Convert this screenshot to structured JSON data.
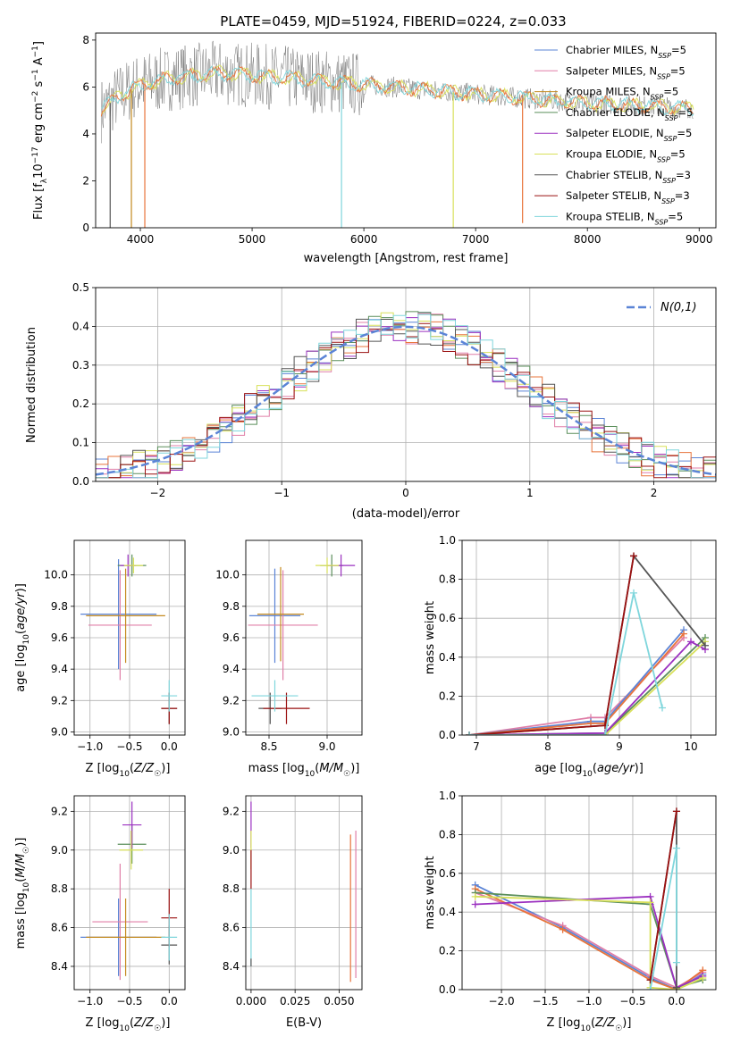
{
  "title": "PLATE=0459, MJD=51924, FIBERID=0224, z=0.033",
  "colors": {
    "Chabrier MILES": "#5b84d6",
    "Salpeter MILES": "#e07fa8",
    "Kroupa MILES": "#c48a1f",
    "Chabrier ELODIE": "#5b8f5b",
    "Salpeter ELODIE": "#9b30c0",
    "Kroupa ELODIE": "#d8e05a",
    "Chabrier STELIB": "#555555",
    "Salpeter STELIB": "#9a1010",
    "Kroupa STELIB": "#7fd6dc",
    "orange": "#e8743b",
    "gauss": "#5b84d6",
    "grid": "#b0b0b0"
  },
  "chart_data": [
    {
      "type": "line",
      "name": "spectrum",
      "xlabel": "wavelength [Angstrom, rest frame]",
      "ylabel": "Flux [f_λ 10^-17 erg cm^-2 s^-1 A^-1]",
      "xlim": [
        3600,
        9150
      ],
      "ylim": [
        0,
        8.3
      ],
      "xticks": [
        4000,
        5000,
        6000,
        7000,
        8000,
        9000
      ],
      "yticks": [
        0,
        2,
        4,
        6,
        8
      ],
      "legend": [
        {
          "base": "Chabrier MILES",
          "sub": "SSP",
          "n": "=5"
        },
        {
          "base": "Salpeter MILES",
          "sub": "SSP",
          "n": "=5"
        },
        {
          "base": "Kroupa MILES",
          "sub": "SSP",
          "n": "=5"
        },
        {
          "base": "Chabrier ELODIE",
          "sub": "SSP",
          "n": "=5"
        },
        {
          "base": "Salpeter ELODIE",
          "sub": "SSP",
          "n": "=5"
        },
        {
          "base": "Kroupa ELODIE",
          "sub": "SSP",
          "n": "=5"
        },
        {
          "base": "Chabrier STELIB",
          "sub": "SSP",
          "n": "=3"
        },
        {
          "base": "Salpeter STELIB",
          "sub": "SSP",
          "n": "=3"
        },
        {
          "base": "Kroupa STELIB",
          "sub": "SSP",
          "n": "=5"
        }
      ],
      "legend_position": "upper-right",
      "continuum_points": [
        [
          3650,
          5.0
        ],
        [
          3800,
          5.6
        ],
        [
          4000,
          6.1
        ],
        [
          4300,
          6.4
        ],
        [
          4700,
          6.6
        ],
        [
          5000,
          6.5
        ],
        [
          5500,
          6.3
        ],
        [
          6000,
          6.1
        ],
        [
          6500,
          5.9
        ],
        [
          7000,
          5.7
        ],
        [
          7500,
          5.5
        ],
        [
          8000,
          5.3
        ],
        [
          8500,
          5.2
        ],
        [
          8900,
          5.1
        ]
      ],
      "drops": [
        {
          "x": 3730,
          "y": 0.0,
          "series": "Chabrier STELIB"
        },
        {
          "x": 3920,
          "y": 0.0,
          "series": "Kroupa MILES"
        },
        {
          "x": 4040,
          "y": 0.0,
          "series": "orange"
        },
        {
          "x": 5800,
          "y": 0.0,
          "series": "Kroupa STELIB"
        },
        {
          "x": 6800,
          "y": 0.0,
          "series": "Kroupa ELODIE"
        },
        {
          "x": 7420,
          "y": 0.2,
          "series": "orange"
        }
      ]
    },
    {
      "type": "step",
      "name": "residual-histogram",
      "xlabel": "(data-model)/error",
      "ylabel": "Normed distribution",
      "xlim": [
        -2.5,
        2.5
      ],
      "ylim": [
        0,
        0.5
      ],
      "xticks": [
        -2,
        -1,
        0,
        1,
        2
      ],
      "yticks": [
        0.0,
        0.1,
        0.2,
        0.3,
        0.4,
        0.5
      ],
      "bin_width": 0.1,
      "gaussian_label": "N(0,1)",
      "legend_position": "upper-right"
    },
    {
      "type": "errorbar",
      "name": "age-vs-Z",
      "xlabel": "Z [log10(Z/Z☉)]",
      "ylabel": "age [log10(age/yr)]",
      "xlim": [
        -1.2,
        0.2
      ],
      "ylim": [
        8.98,
        10.22
      ],
      "xticks": [
        -1.0,
        -0.5,
        0.0
      ],
      "yticks": [
        9.0,
        9.2,
        9.4,
        9.6,
        9.8,
        10.0
      ],
      "points": [
        {
          "series": "Chabrier MILES",
          "x": -0.64,
          "y": 9.75,
          "xerr": 0.48,
          "yerr": 0.35
        },
        {
          "series": "Salpeter MILES",
          "x": -0.62,
          "y": 9.68,
          "xerr": 0.4,
          "yerr": 0.35
        },
        {
          "series": "Kroupa MILES",
          "x": -0.55,
          "y": 9.74,
          "xerr": 0.5,
          "yerr": 0.3
        },
        {
          "series": "Chabrier ELODIE",
          "x": -0.47,
          "y": 10.06,
          "xerr": 0.18,
          "yerr": 0.07
        },
        {
          "series": "Salpeter ELODIE",
          "x": -0.52,
          "y": 10.06,
          "xerr": 0.1,
          "yerr": 0.07
        },
        {
          "series": "Kroupa ELODIE",
          "x": -0.45,
          "y": 10.06,
          "xerr": 0.12,
          "yerr": 0.05
        },
        {
          "series": "Chabrier STELIB",
          "x": 0.0,
          "y": 9.15,
          "xerr": 0.1,
          "yerr": 0.1
        },
        {
          "series": "Salpeter STELIB",
          "x": 0.0,
          "y": 9.15,
          "xerr": 0.1,
          "yerr": 0.1
        },
        {
          "series": "Kroupa STELIB",
          "x": 0.0,
          "y": 9.23,
          "xerr": 0.1,
          "yerr": 0.1
        }
      ]
    },
    {
      "type": "errorbar",
      "name": "age-vs-mass",
      "xlabel": "mass [log10(M/M☉)]",
      "ylabel": "",
      "xlim": [
        8.3,
        9.3
      ],
      "ylim": [
        8.98,
        10.22
      ],
      "xticks": [
        8.5,
        9.0
      ],
      "yticks": [
        9.0,
        9.2,
        9.4,
        9.6,
        9.8,
        10.0
      ],
      "points": [
        {
          "series": "Chabrier MILES",
          "x": 8.55,
          "y": 9.74,
          "xerr": 0.22,
          "yerr": 0.3
        },
        {
          "series": "Salpeter MILES",
          "x": 8.62,
          "y": 9.68,
          "xerr": 0.3,
          "yerr": 0.35
        },
        {
          "series": "Kroupa MILES",
          "x": 8.6,
          "y": 9.75,
          "xerr": 0.2,
          "yerr": 0.3
        },
        {
          "series": "Chabrier ELODIE",
          "x": 9.04,
          "y": 10.06,
          "xerr": 0.1,
          "yerr": 0.07
        },
        {
          "series": "Salpeter ELODIE",
          "x": 9.12,
          "y": 10.06,
          "xerr": 0.12,
          "yerr": 0.07
        },
        {
          "series": "Kroupa ELODIE",
          "x": 9.0,
          "y": 10.06,
          "xerr": 0.1,
          "yerr": 0.05
        },
        {
          "series": "Chabrier STELIB",
          "x": 8.51,
          "y": 9.15,
          "xerr": 0.1,
          "yerr": 0.1
        },
        {
          "series": "Salpeter STELIB",
          "x": 8.65,
          "y": 9.15,
          "xerr": 0.2,
          "yerr": 0.1
        },
        {
          "series": "Kroupa STELIB",
          "x": 8.55,
          "y": 9.23,
          "xerr": 0.2,
          "yerr": 0.1
        }
      ]
    },
    {
      "type": "line",
      "name": "mass-weight-vs-age",
      "xlabel": "age [log10(age/yr)]",
      "ylabel": "mass weight",
      "xlim": [
        6.8,
        10.35
      ],
      "ylim": [
        0,
        1.0
      ],
      "xticks": [
        7,
        8,
        9,
        10
      ],
      "yticks": [
        0.0,
        0.2,
        0.4,
        0.6,
        0.8,
        1.0
      ],
      "series": [
        {
          "name": "Salpeter MILES",
          "x": [
            6.9,
            8.6,
            8.8,
            9.9
          ],
          "y": [
            0.0,
            0.09,
            0.09,
            0.5
          ]
        },
        {
          "name": "Chabrier MILES",
          "x": [
            6.9,
            8.6,
            8.8,
            9.9
          ],
          "y": [
            0.0,
            0.07,
            0.07,
            0.54
          ]
        },
        {
          "name": "orange",
          "x": [
            6.9,
            8.6,
            8.8,
            9.9
          ],
          "y": [
            0.0,
            0.06,
            0.06,
            0.52
          ]
        },
        {
          "name": "Chabrier ELODIE",
          "x": [
            6.9,
            8.8,
            10.2
          ],
          "y": [
            0.0,
            0.01,
            0.5
          ]
        },
        {
          "name": "Salpeter ELODIE",
          "x": [
            6.9,
            8.8,
            10.0,
            10.2
          ],
          "y": [
            0.0,
            0.01,
            0.48,
            0.44
          ]
        },
        {
          "name": "Kroupa ELODIE",
          "x": [
            6.9,
            8.8,
            10.2
          ],
          "y": [
            0.0,
            0.0,
            0.48
          ]
        },
        {
          "name": "Chabrier STELIB",
          "x": [
            6.9,
            8.8,
            9.2,
            10.2
          ],
          "y": [
            0.0,
            0.05,
            0.92,
            0.46
          ]
        },
        {
          "name": "Salpeter STELIB",
          "x": [
            6.9,
            8.8,
            9.2
          ],
          "y": [
            0.0,
            0.05,
            0.92
          ]
        },
        {
          "name": "Kroupa STELIB",
          "x": [
            6.9,
            8.8,
            9.2,
            9.6
          ],
          "y": [
            0.0,
            0.0,
            0.73,
            0.14
          ]
        }
      ]
    },
    {
      "type": "errorbar",
      "name": "mass-vs-Z",
      "xlabel": "Z [log10(Z/Z☉)]",
      "ylabel": "mass [log10(M/M☉)]",
      "xlim": [
        -1.2,
        0.2
      ],
      "ylim": [
        8.28,
        9.28
      ],
      "xticks": [
        -1.0,
        -0.5,
        0.0
      ],
      "yticks": [
        8.4,
        8.6,
        8.8,
        9.0,
        9.2
      ],
      "points": [
        {
          "series": "Chabrier MILES",
          "x": -0.64,
          "y": 8.55,
          "xerr": 0.48,
          "yerr": 0.2
        },
        {
          "series": "Salpeter MILES",
          "x": -0.62,
          "y": 8.63,
          "xerr": 0.35,
          "yerr": 0.3
        },
        {
          "series": "Kroupa MILES",
          "x": -0.55,
          "y": 8.55,
          "xerr": 0.5,
          "yerr": 0.2
        },
        {
          "series": "Chabrier ELODIE",
          "x": -0.47,
          "y": 9.03,
          "xerr": 0.18,
          "yerr": 0.1
        },
        {
          "series": "Salpeter ELODIE",
          "x": -0.47,
          "y": 9.13,
          "xerr": 0.12,
          "yerr": 0.12
        },
        {
          "series": "Kroupa ELODIE",
          "x": -0.48,
          "y": 9.0,
          "xerr": 0.15,
          "yerr": 0.1
        },
        {
          "series": "Chabrier STELIB",
          "x": 0.0,
          "y": 8.51,
          "xerr": 0.1,
          "yerr": 0.1
        },
        {
          "series": "Salpeter STELIB",
          "x": 0.0,
          "y": 8.65,
          "xerr": 0.1,
          "yerr": 0.15
        },
        {
          "series": "Kroupa STELIB",
          "x": 0.0,
          "y": 8.55,
          "xerr": 0.1,
          "yerr": 0.12
        }
      ]
    },
    {
      "type": "errorbar",
      "name": "mass-vs-ebv",
      "xlabel": "E(B-V)",
      "ylabel": "",
      "xlim": [
        -0.003,
        0.063
      ],
      "ylim": [
        8.28,
        9.28
      ],
      "xticks": [
        0.0,
        0.025,
        0.05
      ],
      "xtick_labels": [
        "0.000",
        "0.025",
        "0.050"
      ],
      "yticks": [
        8.4,
        8.6,
        8.8,
        9.0,
        9.2
      ],
      "points": [
        {
          "series": "Salpeter ELODIE",
          "x": 0.0,
          "y": 9.13,
          "xerr": 0,
          "yerr": 0.12
        },
        {
          "series": "Kroupa ELODIE",
          "x": 0.0,
          "y": 9.0,
          "xerr": 0,
          "yerr": 0.1
        },
        {
          "series": "Salpeter STELIB",
          "x": 0.0,
          "y": 8.9,
          "xerr": 0,
          "yerr": 0.1
        },
        {
          "series": "Kroupa STELIB",
          "x": 0.0,
          "y": 8.6,
          "xerr": 0,
          "yerr": 0.2
        },
        {
          "series": "Chabrier STELIB",
          "x": 0.0,
          "y": 8.42,
          "xerr": 0,
          "yerr": 0.02
        },
        {
          "series": "orange",
          "x": 0.0565,
          "y": 8.7,
          "xerr": 0,
          "yerr": 0.38
        },
        {
          "series": "Salpeter MILES",
          "x": 0.0595,
          "y": 8.72,
          "xerr": 0,
          "yerr": 0.38
        }
      ]
    },
    {
      "type": "line",
      "name": "mass-weight-vs-Z",
      "xlabel": "Z [log10(Z/Z☉)]",
      "ylabel": "mass weight",
      "xlim": [
        -2.45,
        0.45
      ],
      "ylim": [
        0,
        1.0
      ],
      "xticks": [
        -2.0,
        -1.5,
        -1.0,
        -0.5,
        0.0
      ],
      "yticks": [
        0.0,
        0.2,
        0.4,
        0.6,
        0.8,
        1.0
      ],
      "series": [
        {
          "name": "Chabrier MILES",
          "x": [
            -2.3,
            -1.3,
            -0.3,
            0.0,
            0.3
          ],
          "y": [
            0.54,
            0.32,
            0.06,
            0.0,
            0.08
          ]
        },
        {
          "name": "Salpeter MILES",
          "x": [
            -2.3,
            -1.3,
            -0.3,
            0.0,
            0.3
          ],
          "y": [
            0.5,
            0.33,
            0.07,
            0.01,
            0.09
          ]
        },
        {
          "name": "orange",
          "x": [
            -2.3,
            -1.3,
            -0.3,
            0.0,
            0.3
          ],
          "y": [
            0.52,
            0.31,
            0.05,
            0.0,
            0.1
          ]
        },
        {
          "name": "Chabrier ELODIE",
          "x": [
            -2.3,
            -0.3,
            0.0,
            0.3
          ],
          "y": [
            0.5,
            0.44,
            0.01,
            0.05
          ]
        },
        {
          "name": "Salpeter ELODIE",
          "x": [
            -2.3,
            -0.3,
            0.0,
            0.3
          ],
          "y": [
            0.44,
            0.48,
            0.01,
            0.07
          ]
        },
        {
          "name": "Kroupa ELODIE",
          "x": [
            -2.3,
            -0.3,
            -0.3,
            0.0,
            0.3
          ],
          "y": [
            0.48,
            0.45,
            0.01,
            0.0,
            0.06
          ]
        },
        {
          "name": "Chabrier STELIB",
          "x": [
            -0.3,
            0.0,
            0.0
          ],
          "y": [
            0.05,
            0.92,
            0.01
          ]
        },
        {
          "name": "Salpeter STELIB",
          "x": [
            -0.3,
            0.0
          ],
          "y": [
            0.05,
            0.92
          ]
        },
        {
          "name": "Kroupa STELIB",
          "x": [
            -0.3,
            0.0,
            0.0
          ],
          "y": [
            0.0,
            0.73,
            0.14
          ]
        }
      ]
    }
  ]
}
